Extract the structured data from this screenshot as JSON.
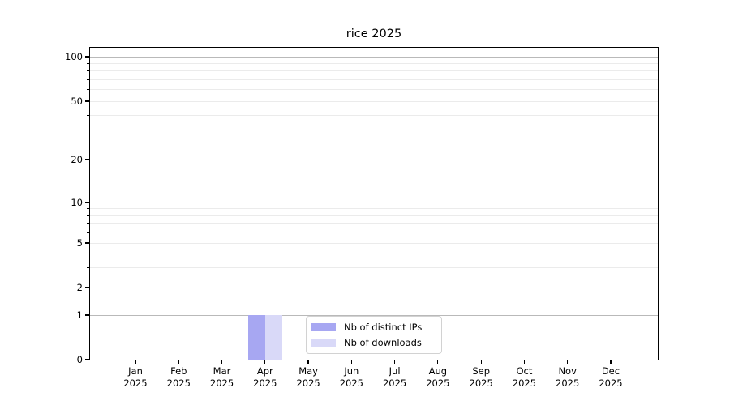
{
  "chart_data": {
    "type": "bar",
    "title": "rice 2025",
    "categories": [
      "Jan",
      "Feb",
      "Mar",
      "Apr",
      "May",
      "Jun",
      "Jul",
      "Aug",
      "Sep",
      "Oct",
      "Nov",
      "Dec"
    ],
    "x_year_label": "2025",
    "series": [
      {
        "name": "Nb of distinct IPs",
        "color": "#a7a7f2",
        "values": [
          0,
          0,
          0,
          1,
          0,
          0,
          0,
          0,
          0,
          0,
          0,
          0
        ]
      },
      {
        "name": "Nb of downloads",
        "color": "#d9d9f8",
        "values": [
          0,
          0,
          0,
          1,
          0,
          0,
          0,
          0,
          0,
          0,
          0,
          0
        ]
      }
    ],
    "y_axis": {
      "scale": "log-like with zero baseline",
      "tick_labels": [
        "0",
        "1",
        "2",
        "5",
        "10",
        "20",
        "50",
        "100"
      ],
      "tick_values": [
        0,
        1,
        2,
        5,
        10,
        20,
        50,
        100
      ],
      "major_grid_values": [
        1,
        10,
        100
      ],
      "minor_grid_values": [
        2,
        3,
        4,
        5,
        6,
        7,
        8,
        9,
        20,
        30,
        40,
        50,
        60,
        70,
        80,
        90
      ],
      "range_top": 117
    },
    "legend": {
      "position": "bottom-center-inside"
    },
    "grid": true,
    "colors": {
      "major_grid": "#b9b9b9",
      "minor_grid": "#ebebeb",
      "axis": "#000000"
    }
  }
}
